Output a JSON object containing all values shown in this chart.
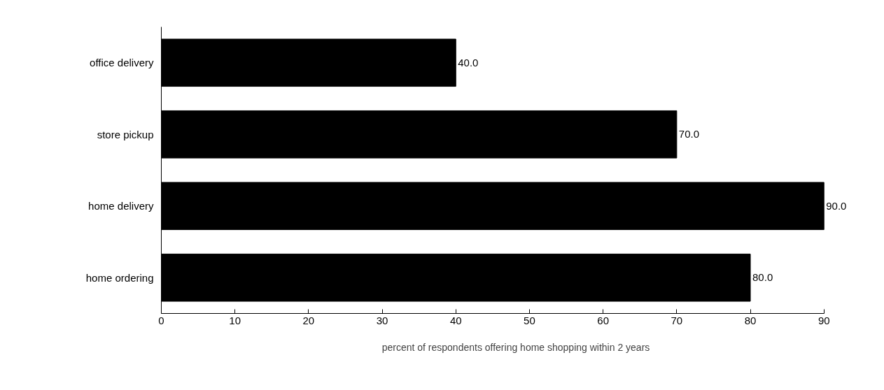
{
  "chart_data": {
    "type": "bar",
    "orientation": "horizontal",
    "xlabel": "percent of respondents offering home shopping within 2 years",
    "categories": [
      "office delivery",
      "store pickup",
      "home delivery",
      "home ordering"
    ],
    "values": [
      40,
      70,
      90,
      80
    ],
    "color": "#000000",
    "value_labels": [
      "40.0",
      "70.0",
      "90.0",
      "80.0"
    ],
    "xlim": [
      0,
      90
    ],
    "xticks": [
      0,
      10,
      20,
      30,
      40,
      50,
      60,
      70,
      80,
      90
    ],
    "grid": false
  }
}
